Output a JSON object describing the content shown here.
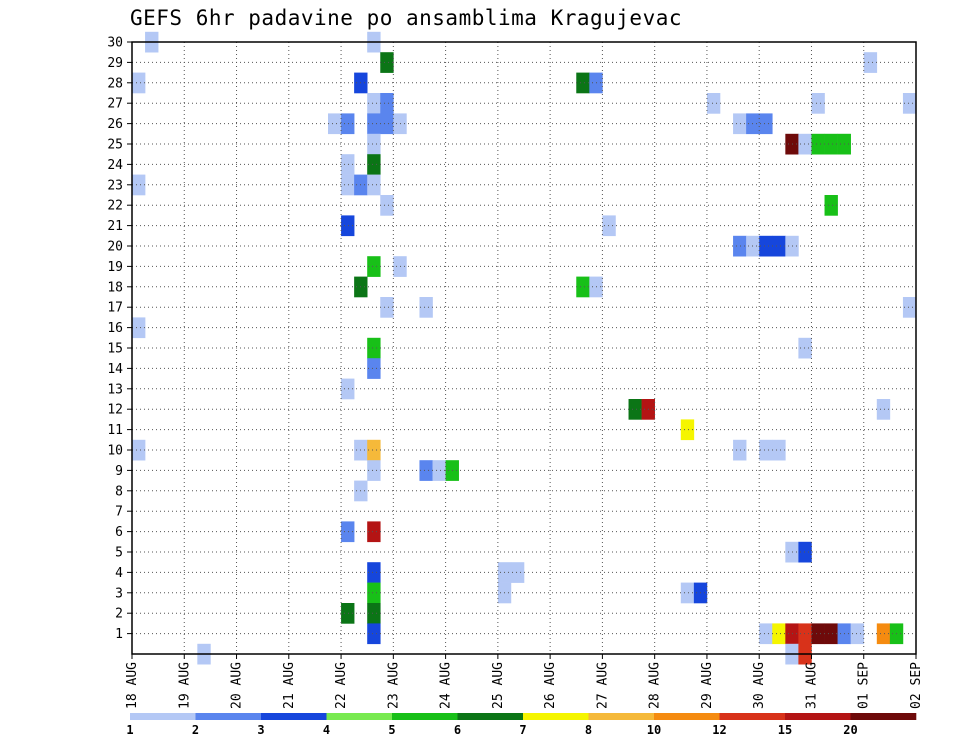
{
  "chart_data": {
    "type": "heatmap",
    "title": "GEFS 6hr padavine po ansamblima Kragujevac",
    "xlabel": "",
    "ylabel": "",
    "x_tick_labels": [
      "18 AUG",
      "19 AUG",
      "20 AUG",
      "21 AUG",
      "22 AUG",
      "23 AUG",
      "24 AUG",
      "25 AUG",
      "26 AUG",
      "27 AUG",
      "28 AUG",
      "29 AUG",
      "30 AUG",
      "31 AUG",
      "01 SEP",
      "02 SEP"
    ],
    "y_tick_labels": [
      "1",
      "2",
      "3",
      "4",
      "5",
      "6",
      "7",
      "8",
      "9",
      "10",
      "11",
      "12",
      "13",
      "14",
      "15",
      "16",
      "17",
      "18",
      "19",
      "20",
      "21",
      "22",
      "23",
      "24",
      "25",
      "26",
      "27",
      "28",
      "29",
      "30"
    ],
    "x_range_steps": [
      0,
      60
    ],
    "steps_per_day": 4,
    "members_range": [
      0,
      30
    ],
    "grid": true,
    "legend_levels": [
      "1",
      "2",
      "3",
      "4",
      "5",
      "6",
      "7",
      "8",
      "10",
      "12",
      "15",
      "20"
    ],
    "legend_colors": [
      "#b4c8f5",
      "#5a85ee",
      "#1646dc",
      "#78ea50",
      "#18c018",
      "#0b7516",
      "#f5f500",
      "#f5b93a",
      "#f58b10",
      "#d8321a",
      "#b41414",
      "#6e0a0a"
    ],
    "cells_format": "[member, step, color_index]",
    "cells": [
      [
        30,
        1,
        0
      ],
      [
        30,
        18,
        0
      ],
      [
        29,
        19,
        5
      ],
      [
        29,
        56,
        0
      ],
      [
        28,
        0,
        0
      ],
      [
        28,
        17,
        2
      ],
      [
        28,
        34,
        5
      ],
      [
        28,
        35,
        1
      ],
      [
        27,
        18,
        0
      ],
      [
        27,
        19,
        1
      ],
      [
        27,
        44,
        0
      ],
      [
        27,
        52,
        0
      ],
      [
        27,
        59,
        0
      ],
      [
        26,
        15,
        0
      ],
      [
        26,
        16,
        1
      ],
      [
        26,
        18,
        1
      ],
      [
        26,
        19,
        1
      ],
      [
        26,
        20,
        0
      ],
      [
        26,
        46,
        0
      ],
      [
        26,
        47,
        1
      ],
      [
        26,
        48,
        1
      ],
      [
        25,
        18,
        0
      ],
      [
        25,
        50,
        11
      ],
      [
        25,
        51,
        0
      ],
      [
        25,
        52,
        4
      ],
      [
        25,
        53,
        4
      ],
      [
        25,
        54,
        4
      ],
      [
        24,
        16,
        0
      ],
      [
        24,
        18,
        5
      ],
      [
        23,
        0,
        0
      ],
      [
        23,
        16,
        0
      ],
      [
        23,
        17,
        1
      ],
      [
        23,
        18,
        0
      ],
      [
        22,
        19,
        0
      ],
      [
        22,
        53,
        4
      ],
      [
        21,
        16,
        2
      ],
      [
        21,
        36,
        0
      ],
      [
        20,
        46,
        1
      ],
      [
        20,
        47,
        0
      ],
      [
        20,
        48,
        2
      ],
      [
        20,
        49,
        2
      ],
      [
        20,
        50,
        0
      ],
      [
        19,
        20,
        0
      ],
      [
        19,
        18,
        4
      ],
      [
        18,
        17,
        5
      ],
      [
        18,
        34,
        4
      ],
      [
        18,
        35,
        0
      ],
      [
        17,
        19,
        0
      ],
      [
        17,
        22,
        0
      ],
      [
        17,
        59,
        0
      ],
      [
        16,
        0,
        0
      ],
      [
        15,
        18,
        4
      ],
      [
        15,
        51,
        0
      ],
      [
        14,
        18,
        1
      ],
      [
        13,
        16,
        0
      ],
      [
        12,
        38,
        5
      ],
      [
        12,
        39,
        10
      ],
      [
        12,
        57,
        0
      ],
      [
        11,
        42,
        6
      ],
      [
        10,
        0,
        0
      ],
      [
        10,
        17,
        0
      ],
      [
        10,
        18,
        7
      ],
      [
        10,
        46,
        0
      ],
      [
        10,
        48,
        0
      ],
      [
        10,
        49,
        0
      ],
      [
        9,
        18,
        0
      ],
      [
        9,
        22,
        1
      ],
      [
        9,
        23,
        0
      ],
      [
        9,
        24,
        4
      ],
      [
        8,
        17,
        0
      ],
      [
        6,
        16,
        1
      ],
      [
        6,
        18,
        10
      ],
      [
        5,
        50,
        0
      ],
      [
        5,
        51,
        2
      ],
      [
        4,
        18,
        2
      ],
      [
        4,
        28,
        0
      ],
      [
        4,
        29,
        0
      ],
      [
        3,
        18,
        4
      ],
      [
        3,
        28,
        0
      ],
      [
        3,
        42,
        0
      ],
      [
        3,
        43,
        2
      ],
      [
        2,
        16,
        5
      ],
      [
        2,
        18,
        5
      ],
      [
        1,
        18,
        2
      ],
      [
        1,
        48,
        0
      ],
      [
        1,
        49,
        6
      ],
      [
        1,
        50,
        10
      ],
      [
        1,
        51,
        9
      ],
      [
        1,
        52,
        11
      ],
      [
        1,
        53,
        11
      ],
      [
        1,
        54,
        1
      ],
      [
        1,
        55,
        0
      ],
      [
        1,
        57,
        8
      ],
      [
        1,
        58,
        4
      ],
      [
        0,
        5,
        0
      ],
      [
        0,
        50,
        0
      ],
      [
        0,
        51,
        9
      ]
    ]
  }
}
